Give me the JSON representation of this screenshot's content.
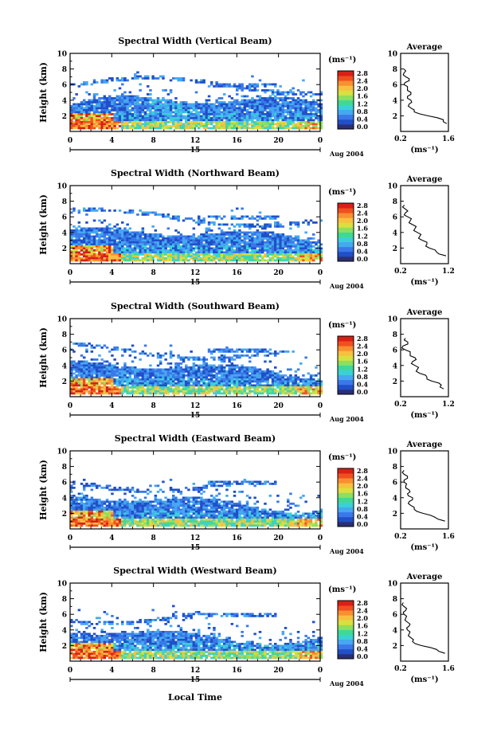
{
  "figure": {
    "xlabel": "Local Time",
    "date_label": "Aug 2004",
    "day_label": "15"
  },
  "colorbar": {
    "unit": "(ms⁻¹)",
    "ticks": [
      "0.0",
      "0.4",
      "0.8",
      "1.2",
      "1.6",
      "2.0",
      "2.4",
      "2.8"
    ],
    "colors": [
      "#2b2f73",
      "#2050c8",
      "#3a78e8",
      "#45a8f0",
      "#3ad0d8",
      "#40d898",
      "#8ce060",
      "#d8e040",
      "#f8c040",
      "#f89030",
      "#f05020",
      "#d82018"
    ]
  },
  "chart_data": [
    {
      "type": "heatmap",
      "title": "Spectral Width (Vertical Beam)",
      "ylabel": "Height (km)",
      "xlim": [
        0,
        24
      ],
      "ylim": [
        0,
        10
      ],
      "xticks": [
        "0",
        "4",
        "8",
        "12",
        "16",
        "20",
        "0"
      ],
      "yticks": [
        "2",
        "4",
        "6",
        "8",
        "10"
      ],
      "average": {
        "title": "Average",
        "xlabel": "(ms⁻¹)",
        "xlim": [
          0.2,
          1.6
        ],
        "xticks": [
          "0.2",
          "1.6"
        ],
        "yticks": [
          "2",
          "4",
          "6",
          "8",
          "10"
        ],
        "height": [
          1.0,
          1.5,
          2.0,
          2.5,
          3.0,
          3.5,
          4.0,
          4.5,
          5.0,
          5.5,
          6.0,
          6.5,
          7.0,
          7.5,
          8.0
        ],
        "value": [
          1.55,
          1.45,
          1.0,
          0.6,
          0.5,
          0.45,
          0.5,
          0.4,
          0.5,
          0.4,
          0.3,
          0.45,
          0.35,
          0.3,
          0.3
        ]
      }
    },
    {
      "type": "heatmap",
      "title": "Spectral Width (Northward Beam)",
      "ylabel": "Height (km)",
      "xlim": [
        0,
        24
      ],
      "ylim": [
        0,
        10
      ],
      "xticks": [
        "0",
        "4",
        "8",
        "12",
        "16",
        "20",
        "0"
      ],
      "yticks": [
        "2",
        "4",
        "6",
        "8",
        "10"
      ],
      "average": {
        "title": "Average",
        "xlabel": "(ms⁻¹)",
        "xlim": [
          0.2,
          1.2
        ],
        "xticks": [
          "0.2",
          "1.2"
        ],
        "yticks": [
          "2",
          "4",
          "6",
          "8",
          "10"
        ],
        "height": [
          1.0,
          1.5,
          2.0,
          2.5,
          3.0,
          3.5,
          4.0,
          4.5,
          5.0,
          5.5,
          6.0,
          6.5,
          7.0,
          7.5
        ],
        "value": [
          1.15,
          0.95,
          0.8,
          0.75,
          0.65,
          0.6,
          0.55,
          0.5,
          0.45,
          0.4,
          0.35,
          0.3,
          0.3,
          0.28
        ]
      }
    },
    {
      "type": "heatmap",
      "title": "Spectral Width (Southward Beam)",
      "ylabel": "Height (km)",
      "xlim": [
        0,
        24
      ],
      "ylim": [
        0,
        10
      ],
      "xticks": [
        "0",
        "4",
        "8",
        "12",
        "16",
        "20",
        "0"
      ],
      "yticks": [
        "2",
        "4",
        "6",
        "8",
        "10"
      ],
      "average": {
        "title": "Average",
        "xlabel": "(ms⁻¹)",
        "xlim": [
          0.2,
          1.2
        ],
        "xticks": [
          "0.2",
          "1.2"
        ],
        "yticks": [
          "2",
          "4",
          "6",
          "8",
          "10"
        ],
        "height": [
          1.0,
          1.5,
          2.0,
          2.5,
          3.0,
          3.5,
          4.0,
          4.5,
          5.0,
          5.5,
          6.0,
          6.5,
          7.0,
          7.5
        ],
        "value": [
          1.1,
          1.05,
          0.85,
          0.75,
          0.6,
          0.55,
          0.5,
          0.45,
          0.5,
          0.4,
          0.3,
          0.25,
          0.35,
          0.3
        ]
      }
    },
    {
      "type": "heatmap",
      "title": "Spectral Width (Eastward Beam)",
      "ylabel": "Height (km)",
      "xlim": [
        0,
        24
      ],
      "ylim": [
        0,
        10
      ],
      "xticks": [
        "0",
        "4",
        "8",
        "12",
        "16",
        "20",
        "0"
      ],
      "yticks": [
        "2",
        "4",
        "6",
        "8",
        "10"
      ],
      "average": {
        "title": "Average",
        "xlabel": "(ms⁻¹)",
        "xlim": [
          0.2,
          1.6
        ],
        "xticks": [
          "0.2",
          "1.6"
        ],
        "yticks": [
          "2",
          "4",
          "6",
          "8",
          "10"
        ],
        "height": [
          1.0,
          1.5,
          2.0,
          2.5,
          3.0,
          3.5,
          4.0,
          4.5,
          5.0,
          5.5,
          6.0,
          6.5,
          7.0,
          7.5
        ],
        "value": [
          1.5,
          1.2,
          0.85,
          0.6,
          0.5,
          0.45,
          0.55,
          0.4,
          0.45,
          0.35,
          0.3,
          0.4,
          0.3,
          0.3
        ]
      }
    },
    {
      "type": "heatmap",
      "title": "Spectral Width (Westward Beam)",
      "ylabel": "Height (km)",
      "xlim": [
        0,
        24
      ],
      "ylim": [
        0,
        10
      ],
      "xticks": [
        "0",
        "4",
        "8",
        "12",
        "16",
        "20",
        "0"
      ],
      "yticks": [
        "2",
        "4",
        "6",
        "8",
        "10"
      ],
      "average": {
        "title": "Average",
        "xlabel": "(ms⁻¹)",
        "xlim": [
          0.2,
          1.6
        ],
        "xticks": [
          "0.2",
          "1.6"
        ],
        "yticks": [
          "2",
          "4",
          "6",
          "8",
          "10"
        ],
        "height": [
          1.0,
          1.5,
          2.0,
          2.5,
          3.0,
          3.5,
          4.0,
          4.5,
          5.0,
          5.5,
          6.0,
          6.5,
          7.0,
          7.5
        ],
        "value": [
          1.5,
          1.25,
          0.8,
          0.55,
          0.5,
          0.45,
          0.4,
          0.45,
          0.4,
          0.35,
          0.3,
          0.35,
          0.3,
          0.28
        ]
      }
    }
  ]
}
